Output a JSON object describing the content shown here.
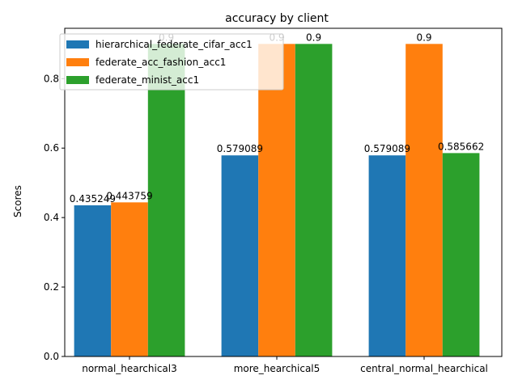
{
  "chart_data": {
    "type": "bar",
    "title": "accuracy by client",
    "xlabel": "",
    "ylabel": "Scores",
    "ylim": [
      0,
      0.945
    ],
    "yticks": [
      "0.0",
      "0.2",
      "0.4",
      "0.6",
      "0.8"
    ],
    "grid": false,
    "legend_position": "top-left",
    "categories": [
      "normal_hearchical3",
      "more_hearchical5",
      "central_normal_hearchical"
    ],
    "series": [
      {
        "name": "hierarchical_federate_cifar_acc1",
        "color": "#1f77b4",
        "values": [
          0.435249,
          0.579089,
          0.579089
        ],
        "labels": [
          "0.435249",
          "0.579089",
          "0.579089"
        ]
      },
      {
        "name": "federate_acc_fashion_acc1",
        "color": "#ff7f0e",
        "values": [
          0.443759,
          0.9,
          0.9
        ],
        "labels": [
          "0.443759",
          "0.9",
          "0.9"
        ]
      },
      {
        "name": "federate_minist_acc1",
        "color": "#2ca02c",
        "values": [
          0.9,
          0.9,
          0.585662
        ],
        "labels": [
          "0.9",
          "0.9",
          "0.585662"
        ]
      }
    ]
  }
}
